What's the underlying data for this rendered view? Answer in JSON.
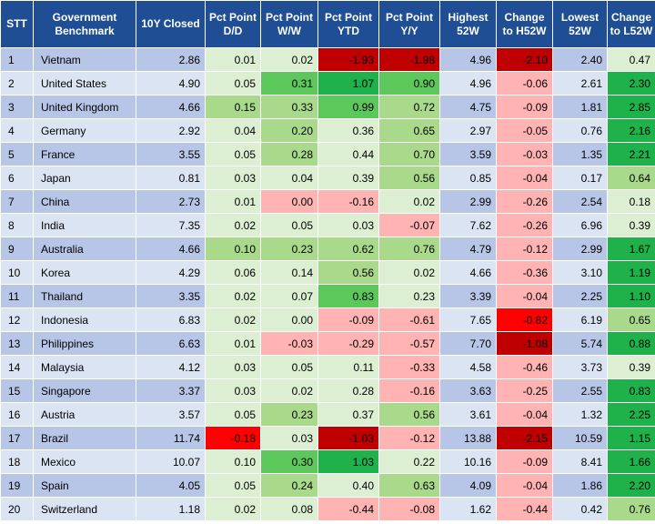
{
  "headers": {
    "stt": "STT",
    "benchmark": "Government Benchmark",
    "closed": "10Y Closed",
    "dd": "Pct Point D/D",
    "ww": "Pct Point W/W",
    "ytd": "Pct Point YTD",
    "yy": "Pct Point Y/Y",
    "high": "Highest 52W",
    "chg_h": "Change to H52W",
    "low": "Lowest 52W",
    "chg_l": "Change to L52W"
  },
  "colors": {
    "header_bg": "#1f4e95",
    "row_odd_bg": "#b7c6e6",
    "row_even_bg": "#dbe4f3",
    "dark_red": "#c00000",
    "red": "#ff0000",
    "light_red": "#ffb3b3",
    "dark_green": "#1fb24a",
    "green": "#5cc85c",
    "light_green": "#a9d98a",
    "pale_green": "#dcefd2"
  },
  "rows": [
    {
      "stt": "1",
      "name": "Vietnam",
      "closed": "2.86",
      "dd": "0.01",
      "ww": "0.02",
      "ytd": "-1.93",
      "yy": "-1.98",
      "high": "4.96",
      "chg_h": "-2.10",
      "low": "2.40",
      "chg_l": "0.47"
    },
    {
      "stt": "2",
      "name": "United States",
      "closed": "4.90",
      "dd": "0.05",
      "ww": "0.31",
      "ytd": "1.07",
      "yy": "0.90",
      "high": "4.96",
      "chg_h": "-0.06",
      "low": "2.61",
      "chg_l": "2.30"
    },
    {
      "stt": "3",
      "name": "United Kingdom",
      "closed": "4.66",
      "dd": "0.15",
      "ww": "0.33",
      "ytd": "0.99",
      "yy": "0.72",
      "high": "4.75",
      "chg_h": "-0.09",
      "low": "1.81",
      "chg_l": "2.85"
    },
    {
      "stt": "4",
      "name": "Germany",
      "closed": "2.92",
      "dd": "0.04",
      "ww": "0.20",
      "ytd": "0.36",
      "yy": "0.65",
      "high": "2.97",
      "chg_h": "-0.05",
      "low": "0.76",
      "chg_l": "2.16"
    },
    {
      "stt": "5",
      "name": "France",
      "closed": "3.55",
      "dd": "0.05",
      "ww": "0.28",
      "ytd": "0.44",
      "yy": "0.70",
      "high": "3.59",
      "chg_h": "-0.03",
      "low": "1.35",
      "chg_l": "2.21"
    },
    {
      "stt": "6",
      "name": "Japan",
      "closed": "0.81",
      "dd": "0.03",
      "ww": "0.04",
      "ytd": "0.39",
      "yy": "0.56",
      "high": "0.85",
      "chg_h": "-0.04",
      "low": "0.17",
      "chg_l": "0.64"
    },
    {
      "stt": "7",
      "name": "China",
      "closed": "2.73",
      "dd": "0.01",
      "ww": "0.00",
      "ytd": "-0.16",
      "yy": "0.02",
      "high": "2.99",
      "chg_h": "-0.26",
      "low": "2.54",
      "chg_l": "0.18"
    },
    {
      "stt": "8",
      "name": "India",
      "closed": "7.35",
      "dd": "0.02",
      "ww": "0.05",
      "ytd": "0.03",
      "yy": "-0.07",
      "high": "7.62",
      "chg_h": "-0.26",
      "low": "6.96",
      "chg_l": "0.39"
    },
    {
      "stt": "9",
      "name": "Australia",
      "closed": "4.66",
      "dd": "0.10",
      "ww": "0.23",
      "ytd": "0.62",
      "yy": "0.76",
      "high": "4.79",
      "chg_h": "-0.12",
      "low": "2.99",
      "chg_l": "1.67"
    },
    {
      "stt": "10",
      "name": "Korea",
      "closed": "4.29",
      "dd": "0.06",
      "ww": "0.14",
      "ytd": "0.56",
      "yy": "0.02",
      "high": "4.66",
      "chg_h": "-0.36",
      "low": "3.10",
      "chg_l": "1.19"
    },
    {
      "stt": "11",
      "name": "Thailand",
      "closed": "3.35",
      "dd": "0.02",
      "ww": "0.07",
      "ytd": "0.83",
      "yy": "0.23",
      "high": "3.39",
      "chg_h": "-0.04",
      "low": "2.25",
      "chg_l": "1.10"
    },
    {
      "stt": "12",
      "name": "Indonesia",
      "closed": "6.83",
      "dd": "0.02",
      "ww": "0.00",
      "ytd": "-0.09",
      "yy": "-0.61",
      "high": "7.65",
      "chg_h": "-0.82",
      "low": "6.19",
      "chg_l": "0.65"
    },
    {
      "stt": "13",
      "name": "Philippines",
      "closed": "6.63",
      "dd": "0.01",
      "ww": "-0.03",
      "ytd": "-0.29",
      "yy": "-0.57",
      "high": "7.70",
      "chg_h": "-1.08",
      "low": "5.74",
      "chg_l": "0.88"
    },
    {
      "stt": "14",
      "name": "Malaysia",
      "closed": "4.12",
      "dd": "0.03",
      "ww": "0.05",
      "ytd": "0.11",
      "yy": "-0.33",
      "high": "4.58",
      "chg_h": "-0.46",
      "low": "3.73",
      "chg_l": "0.39"
    },
    {
      "stt": "15",
      "name": "Singapore",
      "closed": "3.37",
      "dd": "0.03",
      "ww": "0.02",
      "ytd": "0.28",
      "yy": "-0.16",
      "high": "3.63",
      "chg_h": "-0.25",
      "low": "2.55",
      "chg_l": "0.83"
    },
    {
      "stt": "16",
      "name": "Austria",
      "closed": "3.57",
      "dd": "0.05",
      "ww": "0.23",
      "ytd": "0.37",
      "yy": "0.56",
      "high": "3.61",
      "chg_h": "-0.04",
      "low": "1.32",
      "chg_l": "2.25"
    },
    {
      "stt": "17",
      "name": "Brazil",
      "closed": "11.74",
      "dd": "-0.18",
      "ww": "0.03",
      "ytd": "-1.03",
      "yy": "-0.12",
      "high": "13.88",
      "chg_h": "-2.15",
      "low": "10.59",
      "chg_l": "1.15"
    },
    {
      "stt": "18",
      "name": "Mexico",
      "closed": "10.07",
      "dd": "0.10",
      "ww": "0.30",
      "ytd": "1.03",
      "yy": "0.22",
      "high": "10.16",
      "chg_h": "-0.09",
      "low": "8.41",
      "chg_l": "1.66"
    },
    {
      "stt": "19",
      "name": "Spain",
      "closed": "4.05",
      "dd": "0.05",
      "ww": "0.24",
      "ytd": "0.40",
      "yy": "0.63",
      "high": "4.09",
      "chg_h": "-0.04",
      "low": "1.86",
      "chg_l": "2.20"
    },
    {
      "stt": "20",
      "name": "Switzerland",
      "closed": "1.18",
      "dd": "0.02",
      "ww": "0.08",
      "ytd": "-0.44",
      "yy": "-0.08",
      "high": "1.62",
      "chg_h": "-0.44",
      "low": "0.42",
      "chg_l": "0.76"
    }
  ]
}
